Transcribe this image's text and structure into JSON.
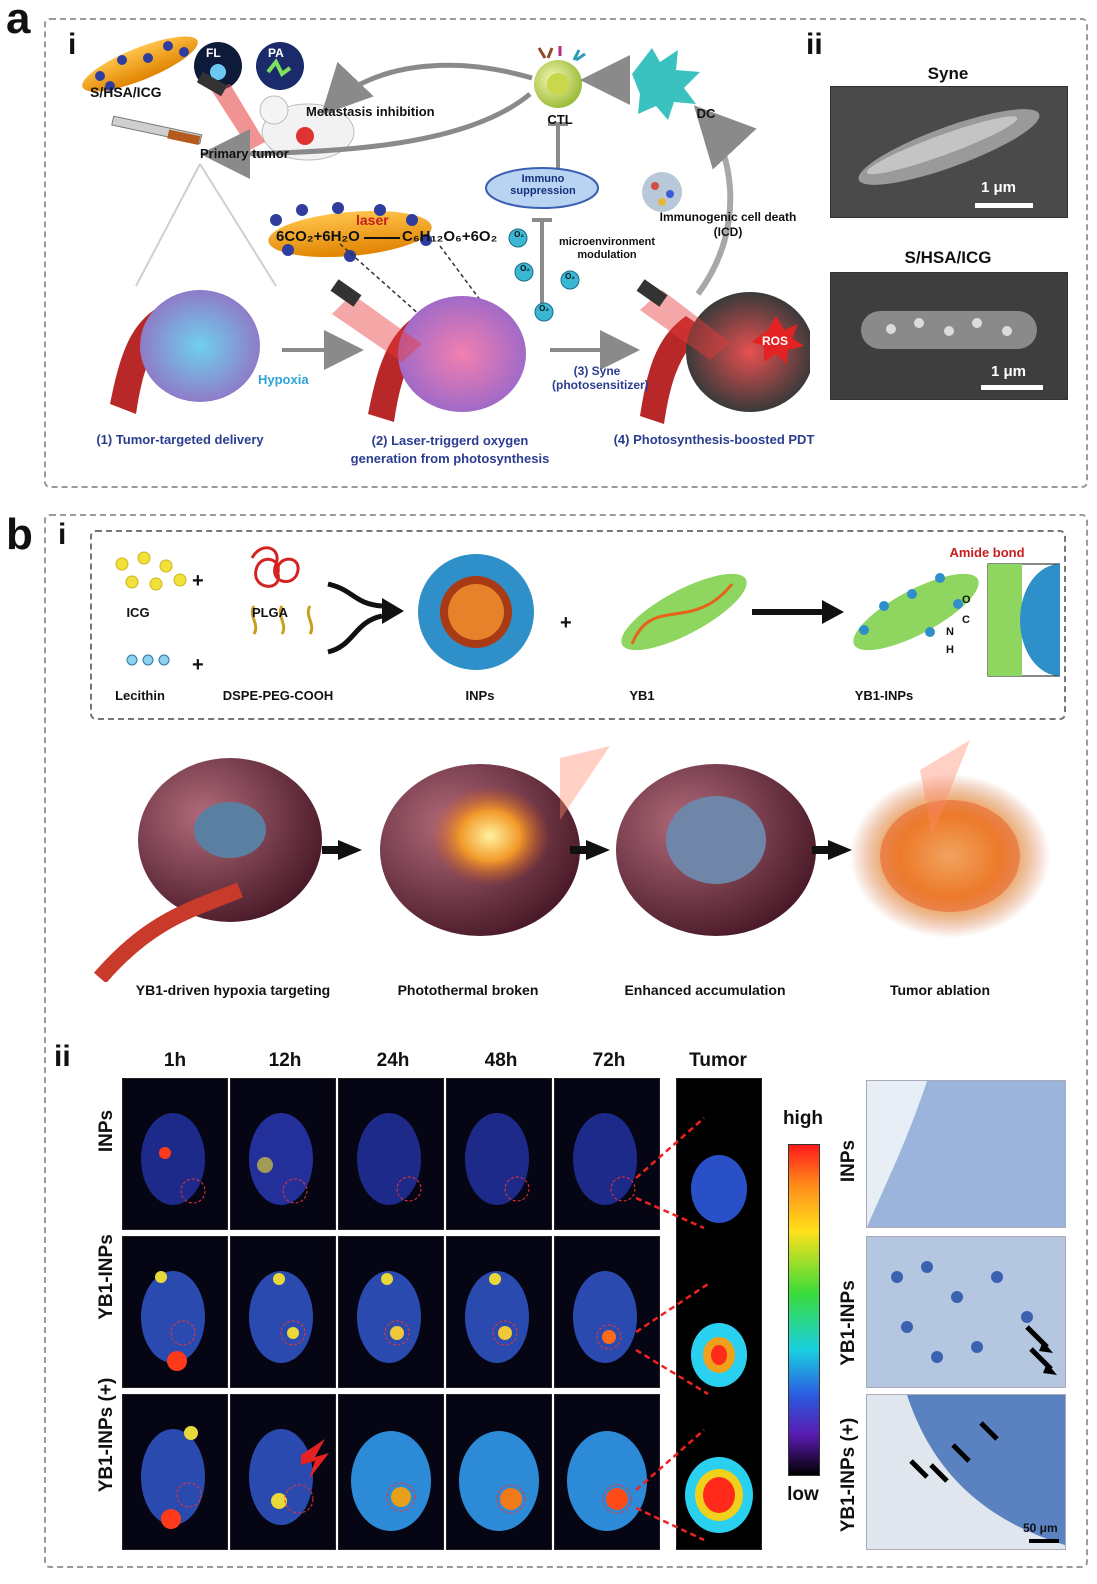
{
  "panel_a": {
    "letter": "a",
    "sub_i": "i",
    "sub_ii": "ii",
    "labels": {
      "s_hsa_icg": "S/HSA/ICG",
      "fl": "FL",
      "pa": "PA",
      "metastasis": "Metastasis inhibition",
      "primary_tumor": "Primary tumor",
      "ctl": "CTL",
      "dc": "DC",
      "immuno_suppression": "Immuno suppression",
      "icd": "Immunogenic cell death (ICD)",
      "microenv": "microenvironment modulation",
      "laser": "laser",
      "equation_left": "6CO₂+6H₂O",
      "equation_right": "C₆H₁₂O₆+6O₂",
      "hypoxia": "Hypoxia",
      "syne_photosensitizer": "(3) Syne (photosensitizer)",
      "ros": "ROS",
      "o2": "O₂"
    },
    "steps": {
      "s1": "(1) Tumor-targeted delivery",
      "s2": "(2) Laser-triggerd oxygen generation from photosynthesis",
      "s4": "(4) Photosynthesis-boosted PDT"
    },
    "sem": {
      "top_title": "Syne",
      "bottom_title": "S/HSA/ICG",
      "scale": "1 μm"
    }
  },
  "panel_b": {
    "letter": "b",
    "sub_i": "i",
    "sub_ii": "ii",
    "synthesis": {
      "icg": "ICG",
      "plga": "PLGA",
      "lecithin": "Lecithin",
      "dspe": "DSPE-PEG-COOH",
      "inps": "INPs",
      "yb1": "YB1",
      "yb1_inps": "YB1-INPs",
      "amide_bond": "Amide bond",
      "plus": "+",
      "atom_o": "O",
      "atom_n": "N",
      "atom_h": "H",
      "atom_c": "C"
    },
    "stages": [
      "YB1-driven hypoxia targeting",
      "Photothermal broken",
      "Enhanced accumulation",
      "Tumor ablation"
    ],
    "imaging": {
      "times": [
        "1h",
        "12h",
        "24h",
        "48h",
        "72h"
      ],
      "tumor_col": "Tumor",
      "rows": [
        "INPs",
        "YB1-INPs",
        "YB1-INPs (+)"
      ],
      "scale_high": "high",
      "scale_low": "low",
      "histo_scale": "50 μm"
    }
  }
}
